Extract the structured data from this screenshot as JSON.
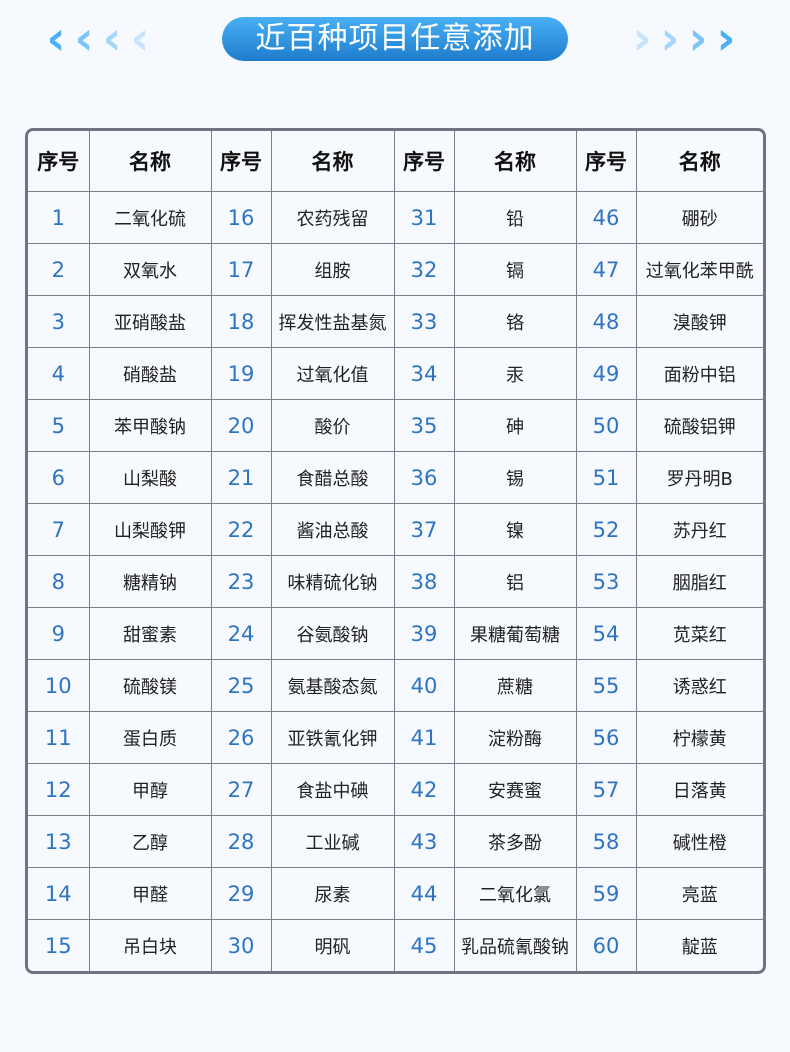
{
  "banner": {
    "title": "近百种项目任意添加"
  },
  "decor": {
    "left_icon": "chevrons-left-icon",
    "right_icon": "chevrons-right-icon",
    "colors": [
      "#4ab0f5",
      "#7cc4f8",
      "#a6d6fa",
      "#c6e4fb"
    ]
  },
  "table": {
    "headers": [
      "序号",
      "名称",
      "序号",
      "名称",
      "序号",
      "名称",
      "序号",
      "名称"
    ],
    "rows": [
      [
        "1",
        "二氧化硫",
        "16",
        "农药残留",
        "31",
        "铅",
        "46",
        "硼砂"
      ],
      [
        "2",
        "双氧水",
        "17",
        "组胺",
        "32",
        "镉",
        "47",
        "过氧化苯甲酰"
      ],
      [
        "3",
        "亚硝酸盐",
        "18",
        "挥发性盐基氮",
        "33",
        "铬",
        "48",
        "溴酸钾"
      ],
      [
        "4",
        "硝酸盐",
        "19",
        "过氧化值",
        "34",
        "汞",
        "49",
        "面粉中铝"
      ],
      [
        "5",
        "苯甲酸钠",
        "20",
        "酸价",
        "35",
        "砷",
        "50",
        "硫酸铝钾"
      ],
      [
        "6",
        "山梨酸",
        "21",
        "食醋总酸",
        "36",
        "锡",
        "51",
        "罗丹明B"
      ],
      [
        "7",
        "山梨酸钾",
        "22",
        "酱油总酸",
        "37",
        "镍",
        "52",
        "苏丹红"
      ],
      [
        "8",
        "糖精钠",
        "23",
        "味精硫化钠",
        "38",
        "铝",
        "53",
        "胭脂红"
      ],
      [
        "9",
        "甜蜜素",
        "24",
        "谷氨酸钠",
        "39",
        "果糖葡萄糖",
        "54",
        "苋菜红"
      ],
      [
        "10",
        "硫酸镁",
        "25",
        "氨基酸态氮",
        "40",
        "蔗糖",
        "55",
        "诱惑红"
      ],
      [
        "11",
        "蛋白质",
        "26",
        "亚铁氰化钾",
        "41",
        "淀粉酶",
        "56",
        "柠檬黄"
      ],
      [
        "12",
        "甲醇",
        "27",
        "食盐中碘",
        "42",
        "安赛蜜",
        "57",
        "日落黄"
      ],
      [
        "13",
        "乙醇",
        "28",
        "工业碱",
        "43",
        "茶多酚",
        "58",
        "碱性橙"
      ],
      [
        "14",
        "甲醛",
        "29",
        "尿素",
        "44",
        "二氧化氯",
        "59",
        "亮蓝"
      ],
      [
        "15",
        "吊白块",
        "30",
        "明矾",
        "45",
        "乳品硫氰酸钠",
        "60",
        "靛蓝"
      ]
    ]
  }
}
